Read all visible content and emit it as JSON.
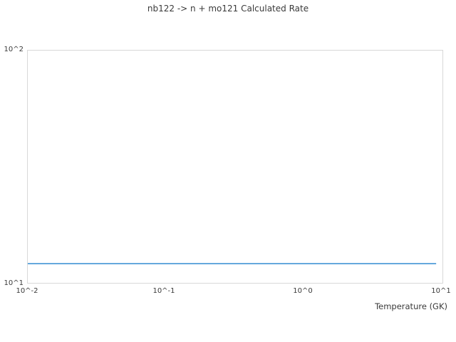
{
  "chart_data": {
    "type": "line",
    "title": "nb122 -> n + mo121 Calculated Rate",
    "xlabel": "Temperature (GK)",
    "ylabel": "",
    "x_scale": "log",
    "y_scale": "log",
    "xlim": [
      0.01,
      10
    ],
    "ylim": [
      10,
      100
    ],
    "x_tick_labels": [
      "10^-2",
      "10^-1",
      "10^0",
      "10^1"
    ],
    "y_tick_labels": [
      "10^1",
      "10^2"
    ],
    "grid": false,
    "legend_position": "none",
    "frame_color": "#d8d8d8",
    "text_color": "#3a3a3a",
    "series": [
      {
        "name": "Calculated Rate",
        "color": "#4f9cd8",
        "line_width": 1.8,
        "x": [
          0.01,
          0.1,
          1.0,
          9.0
        ],
        "y": [
          12.1,
          12.1,
          12.1,
          12.1
        ]
      }
    ]
  }
}
